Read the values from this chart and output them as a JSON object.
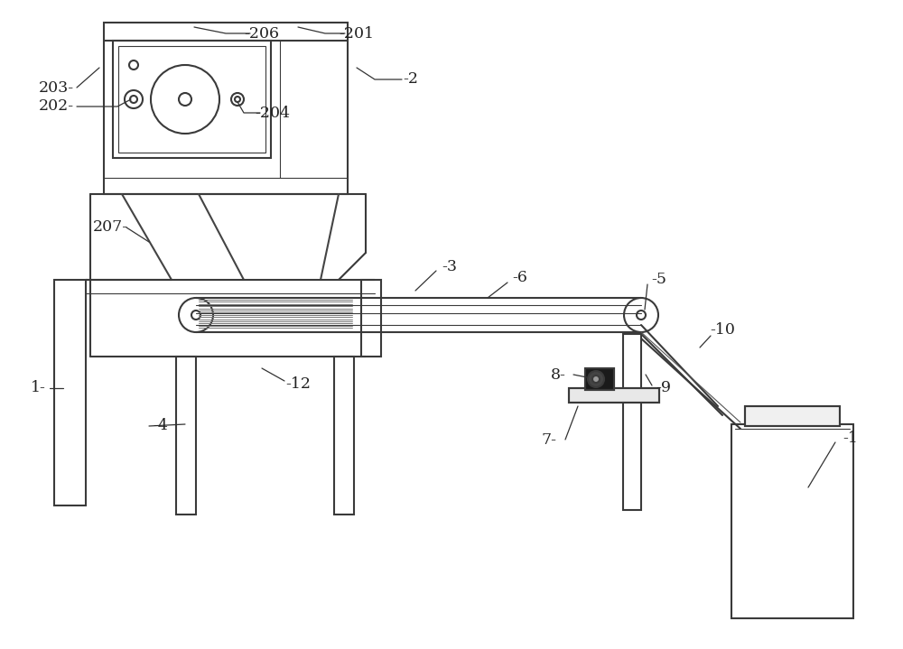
{
  "bg_color": "#ffffff",
  "line_color": "#3a3a3a",
  "lw": 1.5,
  "tlw": 0.8
}
